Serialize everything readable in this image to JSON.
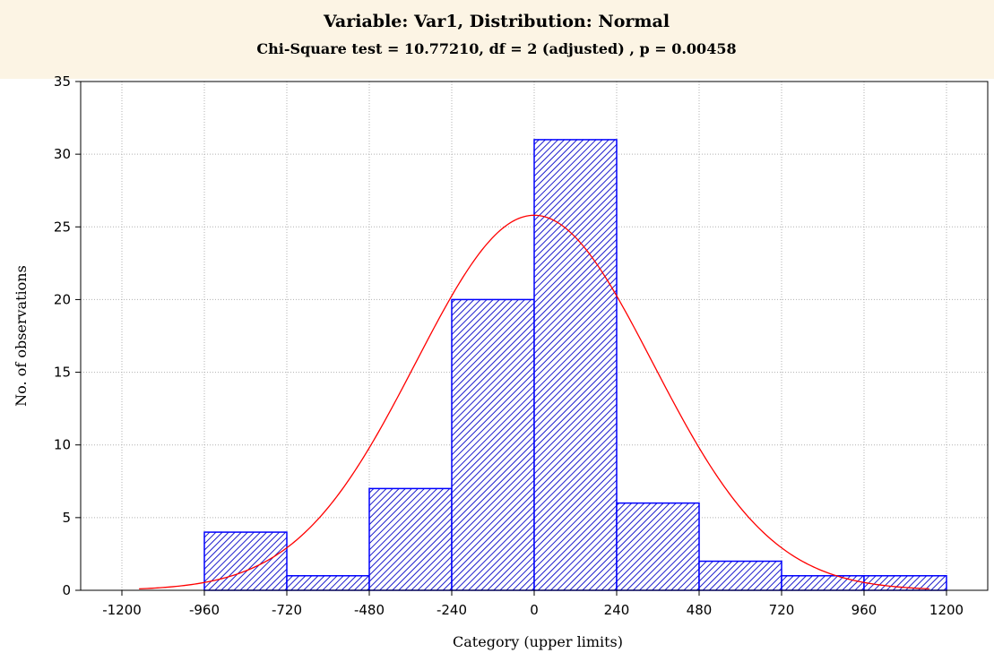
{
  "chart_data": {
    "type": "bar",
    "title": "Variable: Var1, Distribution: Normal",
    "subtitle": "Chi-Square test = 10.77210, df = 2 (adjusted) , p = 0.00458",
    "xlabel": "Category (upper limits)",
    "ylabel": "No. of observations",
    "xlim": [
      -1320,
      1320
    ],
    "ylim": [
      0,
      35
    ],
    "x_ticks": [
      -1200,
      -960,
      -720,
      -480,
      -240,
      0,
      240,
      480,
      720,
      960,
      1200
    ],
    "y_ticks": [
      0,
      5,
      10,
      15,
      20,
      25,
      30,
      35
    ],
    "grid": true,
    "bars": [
      {
        "lower": -960,
        "upper": -720,
        "value": 4
      },
      {
        "lower": -720,
        "upper": -480,
        "value": 1
      },
      {
        "lower": -480,
        "upper": -240,
        "value": 7
      },
      {
        "lower": -240,
        "upper": 0,
        "value": 20
      },
      {
        "lower": 0,
        "upper": 240,
        "value": 31
      },
      {
        "lower": 240,
        "upper": 480,
        "value": 6
      },
      {
        "lower": 480,
        "upper": 720,
        "value": 2
      },
      {
        "lower": 720,
        "upper": 960,
        "value": 1
      },
      {
        "lower": 960,
        "upper": 1200,
        "value": 1
      }
    ],
    "fitted_curve": {
      "kind": "normal",
      "mean": 0,
      "sd": 345,
      "peak": 25.8,
      "x_range": [
        -1150,
        1150
      ]
    },
    "colors": {
      "bar_edge": "#0000ff",
      "bar_hatch": "#1c1ccc",
      "bar_fill": "#ffffff",
      "curve": "#ff0000",
      "grid": "#b0b0b0",
      "header_bg": "#fcf4e4"
    }
  }
}
